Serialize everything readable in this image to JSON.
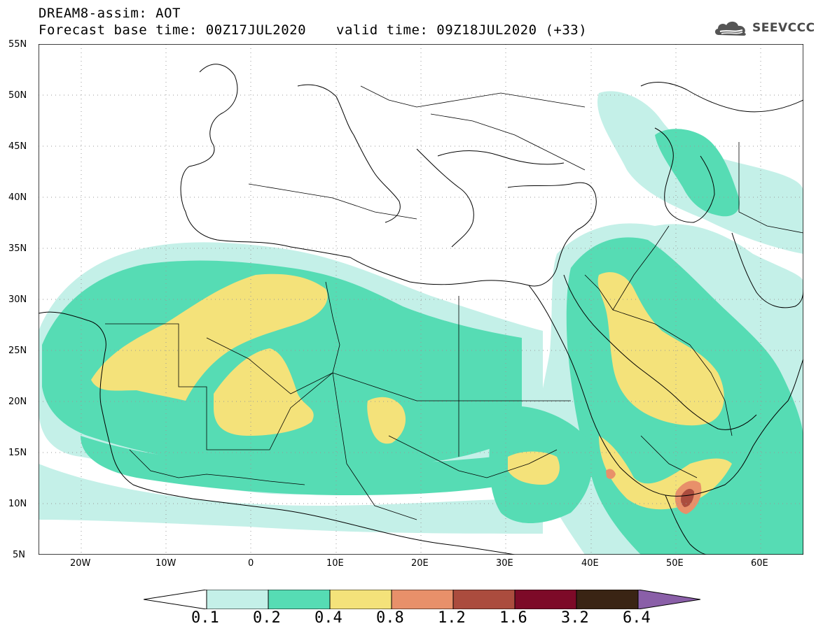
{
  "header": {
    "title_line1": "DREAM8-assim: AOT",
    "title_line2": "Forecast base time: 00Z17JUL2020",
    "valid_time": "valid time: 09Z18JUL2020 (+33)"
  },
  "logo": {
    "text": "SEEVCCC",
    "icon": "cloud-logo-icon"
  },
  "map": {
    "lat_labels": [
      "55N",
      "50N",
      "45N",
      "40N",
      "35N",
      "30N",
      "25N",
      "20N",
      "15N",
      "10N",
      "5N"
    ],
    "lon_labels": [
      "20W",
      "10W",
      "0",
      "10E",
      "20E",
      "30E",
      "40E",
      "50E",
      "60E"
    ],
    "lat_range": [
      5,
      55
    ],
    "lon_range": [
      -25,
      65
    ],
    "grid": "dotted"
  },
  "colorbar": {
    "levels": [
      "0.1",
      "0.2",
      "0.4",
      "0.8",
      "1.2",
      "1.6",
      "3.2",
      "6.4"
    ],
    "colors": [
      "#ffffff",
      "#c4f0e8",
      "#56dcb4",
      "#f4e27a",
      "#e8906a",
      "#ab4c3e",
      "#7d0a28",
      "#3a2414",
      "#8a5fa8"
    ]
  },
  "colors": {
    "aot_0_1": "#c4f0e8",
    "aot_0_2": "#56dcb4",
    "aot_0_4": "#f4e27a",
    "aot_0_8": "#e8906a",
    "aot_1_2": "#ab4c3e",
    "aot_1_6": "#7d0a28"
  }
}
